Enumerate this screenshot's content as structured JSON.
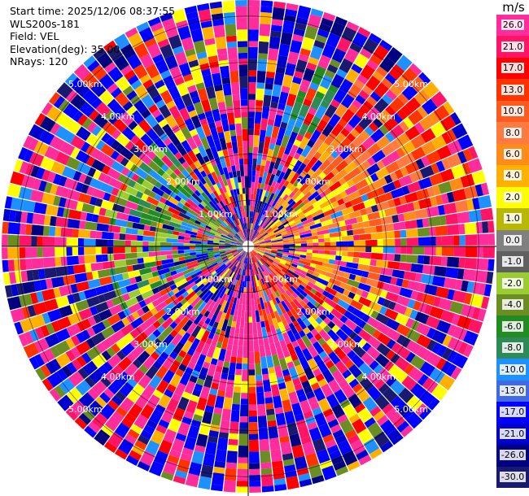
{
  "info": {
    "start_time": "Start time: 2025/12/06 08:37:55",
    "site": "WLS200s-181",
    "field": "Field: VEL",
    "elevation": "Elevation(deg): 35.00",
    "nrays": "NRays: 120"
  },
  "colorbar": {
    "units": "m/s",
    "bands": [
      {
        "label": "26.0",
        "color": "#ff2d9b"
      },
      {
        "label": "21.0",
        "color": "#ff1466"
      },
      {
        "label": "17.0",
        "color": "#ff0000"
      },
      {
        "label": "13.0",
        "color": "#ff3300"
      },
      {
        "label": "10.0",
        "color": "#ff5a1f"
      },
      {
        "label": "8.0",
        "color": "#ff7a40"
      },
      {
        "label": "6.0",
        "color": "#ff8c1a"
      },
      {
        "label": "4.0",
        "color": "#ffb000"
      },
      {
        "label": "2.0",
        "color": "#ffff00"
      },
      {
        "label": "1.0",
        "color": "#b8b800"
      },
      {
        "label": "0.0",
        "color": "#808080"
      },
      {
        "label": "-1.0",
        "color": "#606060"
      },
      {
        "label": "-2.0",
        "color": "#9acd32"
      },
      {
        "label": "-4.0",
        "color": "#6b8e23"
      },
      {
        "label": "-6.0",
        "color": "#228b22"
      },
      {
        "label": "-8.0",
        "color": "#2e8b57"
      },
      {
        "label": "-10.0",
        "color": "#1e90ff"
      },
      {
        "label": "-13.0",
        "color": "#4169e1"
      },
      {
        "label": "-17.0",
        "color": "#0000ff"
      },
      {
        "label": "-21.0",
        "color": "#0000cd"
      },
      {
        "label": "-26.0",
        "color": "#000080"
      },
      {
        "label": "-30.0",
        "color": "#191970"
      }
    ]
  },
  "range_rings": [
    "1.00km",
    "2.00km",
    "3.00km",
    "4.00km",
    "5.00km"
  ]
}
